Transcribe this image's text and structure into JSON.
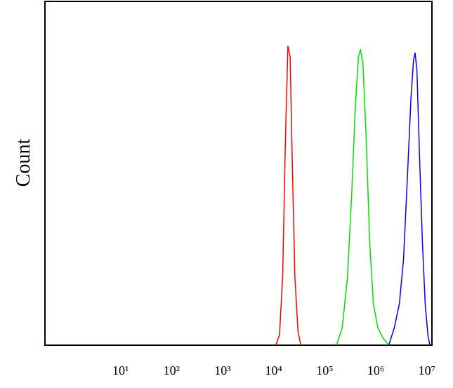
{
  "chart_data": {
    "type": "line",
    "y_label": "Count",
    "xscale": "log",
    "xlim": [
      0.33,
      12600000
    ],
    "ylim": [
      0,
      100
    ],
    "xticks": [
      {
        "value": 10,
        "label": "10¹"
      },
      {
        "value": 100,
        "label": "10²"
      },
      {
        "value": 1000,
        "label": "10³"
      },
      {
        "value": 10000,
        "label": "10⁴"
      },
      {
        "value": 100000,
        "label": "10⁵"
      },
      {
        "value": 1000000,
        "label": "10⁶"
      },
      {
        "value": 10000000,
        "label": "10⁷"
      }
    ],
    "series": [
      {
        "color": "#ff0000",
        "x": [
          11000,
          13000,
          15000,
          17000,
          19000,
          21000,
          23000,
          26000,
          30000,
          34000
        ],
        "values": [
          0,
          3,
          20,
          60,
          87,
          84,
          55,
          20,
          4,
          0
        ]
      },
      {
        "color": "#00e000",
        "x": [
          170000,
          220000,
          280000,
          340000,
          400000,
          460000,
          500000,
          560000,
          650000,
          760000,
          900000,
          1100000,
          1400000,
          1800000
        ],
        "values": [
          0,
          5,
          20,
          45,
          70,
          84,
          86,
          82,
          60,
          30,
          12,
          5,
          2,
          0
        ]
      },
      {
        "color": "#0000ff",
        "x": [
          1800000,
          2300000,
          2900000,
          3500000,
          4200000,
          4900000,
          5500000,
          5900000,
          6400000,
          7200000,
          8200000,
          9300000,
          10500000,
          11500000
        ],
        "values": [
          0,
          5,
          12,
          25,
          50,
          72,
          83,
          85,
          80,
          55,
          30,
          12,
          3,
          0
        ]
      }
    ]
  }
}
